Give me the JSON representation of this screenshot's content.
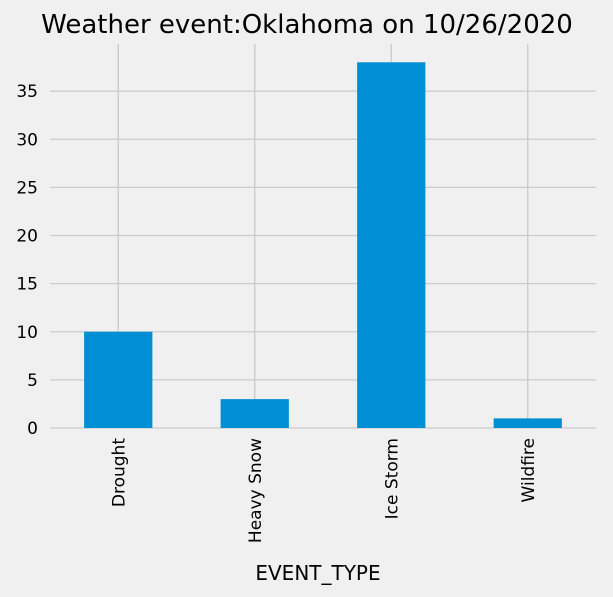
{
  "chart_data": {
    "type": "bar",
    "title": "Weather event:Oklahoma on 10/26/2020",
    "xlabel": "EVENT_TYPE",
    "ylabel": "",
    "categories": [
      "Drought",
      "Heavy Snow",
      "Ice Storm",
      "Wildfire"
    ],
    "values": [
      10,
      3,
      38,
      1
    ],
    "ylim": [
      0,
      39.9
    ],
    "yticks": [
      0,
      5,
      10,
      15,
      20,
      25,
      30,
      35
    ],
    "grid": true,
    "legend": "none",
    "colors": {
      "bar": "#008fd5",
      "grid": "#cbcbcb",
      "background": "#f0f0f0"
    }
  }
}
